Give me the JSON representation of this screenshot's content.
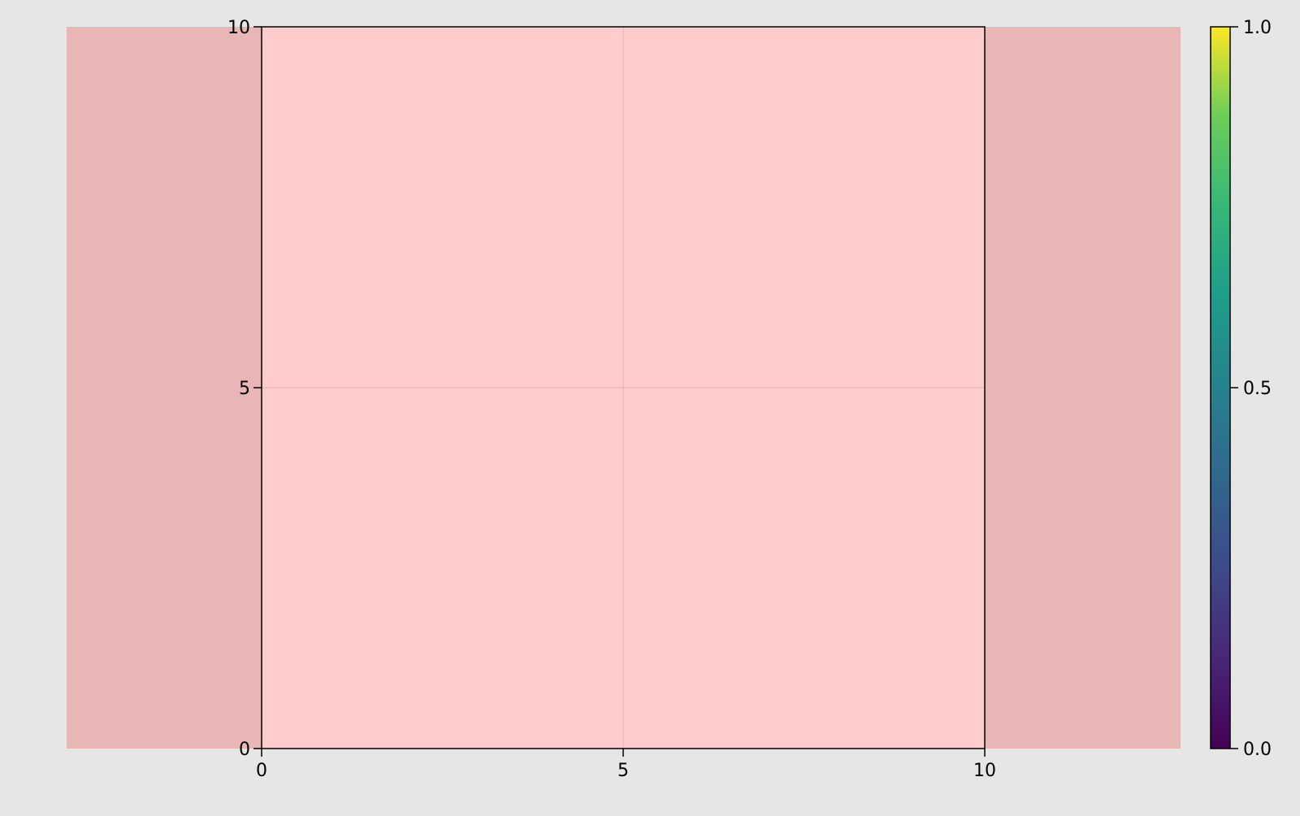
{
  "chart_data": {
    "type": "heatmap",
    "title": "",
    "xlabel": "",
    "ylabel": "",
    "xlim": [
      0,
      10
    ],
    "ylim": [
      0,
      10
    ],
    "x_ticks": [
      "0",
      "5",
      "10"
    ],
    "y_ticks": [
      "0",
      "5",
      "10"
    ],
    "grid": true,
    "colors": {
      "background": "#e6e6e6",
      "outer_region": "#e8b6b5",
      "axis_fill": "#ffcccc"
    },
    "colorbar": {
      "colormap": "viridis",
      "limits": [
        0.0,
        1.0
      ],
      "ticks": [
        "0.0",
        "0.5",
        "1.0"
      ]
    }
  }
}
